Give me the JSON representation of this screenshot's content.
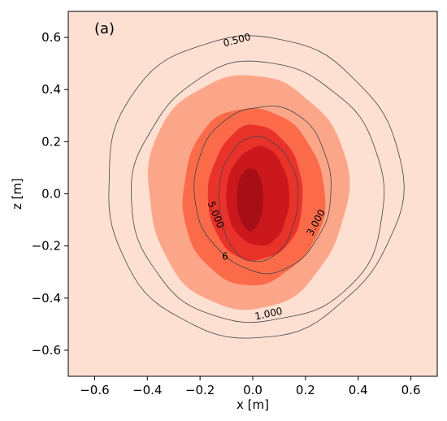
{
  "chart_data": {
    "type": "contour",
    "panel_label": "(a)",
    "xlabel": "x [m]",
    "ylabel": "z [m]",
    "xlim": [
      -0.7,
      0.7
    ],
    "ylim": [
      -0.7,
      0.7
    ],
    "xticks": [
      -0.6,
      -0.4,
      -0.2,
      0.0,
      0.2,
      0.4,
      0.6
    ],
    "yticks": [
      -0.6,
      -0.4,
      -0.2,
      0.0,
      0.2,
      0.4,
      0.6
    ],
    "xtick_labels": [
      "−0.6",
      "−0.4",
      "−0.2",
      "0.0",
      "0.2",
      "0.4",
      "0.6"
    ],
    "ytick_labels": [
      "−0.6",
      "−0.4",
      "−0.2",
      "0.0",
      "0.2",
      "0.4",
      "0.6"
    ],
    "colormap": "Reds",
    "background_color": "#fde0d2",
    "filled_levels": [
      {
        "color": "#fca689",
        "cx": -0.02,
        "cz": 0.01,
        "rx": 0.38,
        "rz": 0.45
      },
      {
        "color": "#fb6b4a",
        "cx": 0.0,
        "cz": -0.01,
        "rx": 0.27,
        "rz": 0.34
      },
      {
        "color": "#e8322a",
        "cx": 0.01,
        "cz": 0.0,
        "rx": 0.18,
        "rz": 0.26
      },
      {
        "color": "#cb181d",
        "cx": 0.02,
        "cz": -0.01,
        "rx": 0.12,
        "rz": 0.19
      },
      {
        "color": "#a50f15",
        "cx": -0.01,
        "cz": -0.02,
        "rx": 0.05,
        "rz": 0.12
      }
    ],
    "contour_lines": [
      {
        "level": 0.5,
        "label": "0.500",
        "cx": 0.0,
        "cz": 0.03,
        "rx": 0.56,
        "rz": 0.58,
        "label_x": -0.06,
        "label_z": 0.59,
        "label_angle": -15
      },
      {
        "level": 1.0,
        "label": "1.000",
        "cx": 0.02,
        "cz": 0.0,
        "rx": 0.48,
        "rz": 0.5,
        "label_x": 0.06,
        "label_z": -0.46,
        "label_angle": -12
      },
      {
        "level": 3.0,
        "label": "3.000",
        "cx": 0.04,
        "cz": 0.02,
        "rx": 0.26,
        "rz": 0.32,
        "label_x": 0.24,
        "label_z": -0.11,
        "label_angle": -62
      },
      {
        "level": 5.0,
        "label": "5.000",
        "cx": 0.02,
        "cz": -0.02,
        "rx": 0.15,
        "rz": 0.24,
        "label_x": -0.14,
        "label_z": -0.08,
        "label_angle": 68
      },
      {
        "level": 6.0,
        "label": "6",
        "cx": -0.11,
        "cz": -0.23,
        "rx": 0.01,
        "rz": 0.01,
        "label_x": -0.105,
        "label_z": -0.24,
        "label_angle": 0
      }
    ],
    "grid": false
  }
}
